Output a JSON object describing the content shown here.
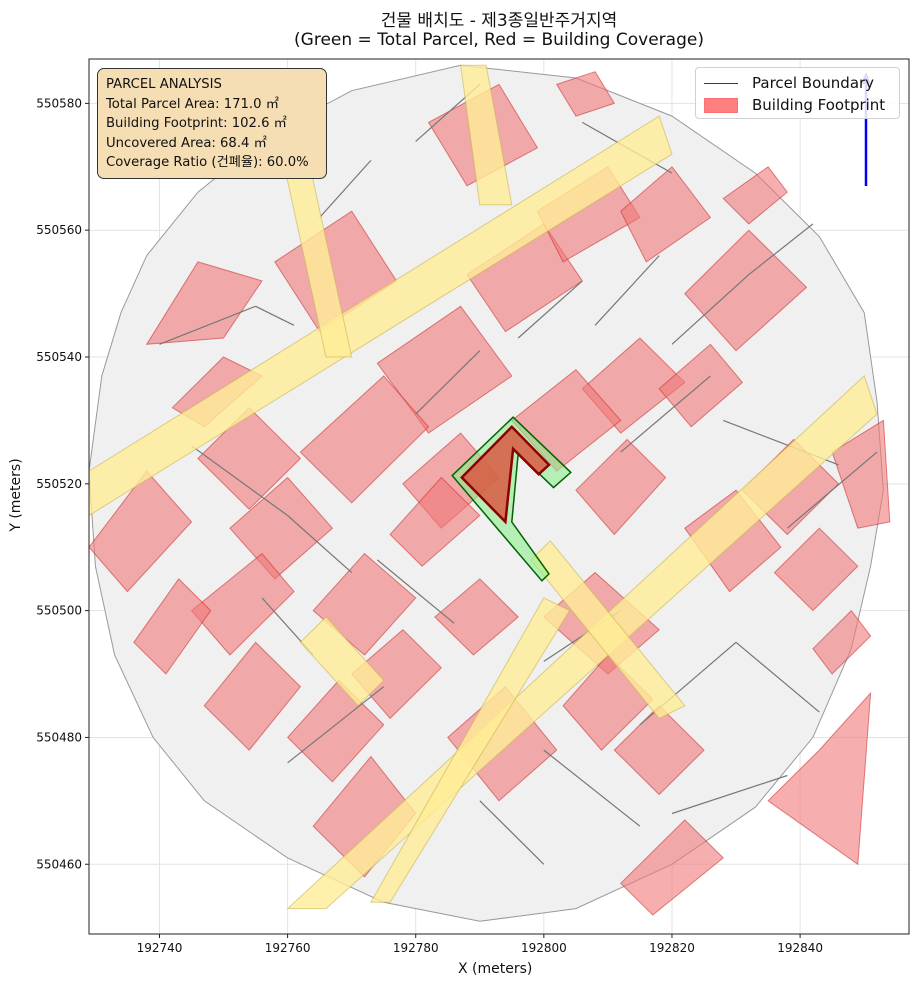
{
  "chart_data": {
    "type": "map",
    "title": "건물 배치도 - 제3종일반주거지역",
    "subtitle": "(Green = Total Parcel, Red = Building Coverage)",
    "xlabel": "X (meters)",
    "ylabel": "Y (meters)",
    "xlim": [
      192729,
      192857
    ],
    "ylim": [
      550449,
      550587
    ],
    "x_ticks": [
      192740,
      192760,
      192780,
      192800,
      192820,
      192840
    ],
    "y_ticks": [
      550460,
      550480,
      550500,
      550520,
      550540,
      550560,
      550580
    ],
    "grid": true,
    "legend_position": "top-right",
    "legend": [
      {
        "label": "Parcel Boundary",
        "type": "line",
        "color": "#006400"
      },
      {
        "label": "Building Footprint",
        "type": "patch",
        "color": "#ff0000"
      }
    ],
    "info_box": {
      "lines": [
        "PARCEL ANALYSIS",
        "Total Parcel Area: 171.0 ㎡",
        "Building Footprint: 102.6 ㎡",
        "Uncovered Area: 68.4 ㎡",
        "Coverage Ratio (건폐율): 60.0%"
      ]
    },
    "analysis": {
      "total_parcel_area_m2": 171.0,
      "building_footprint_m2": 102.6,
      "uncovered_area_m2": 68.4,
      "coverage_ratio_percent": 60.0
    },
    "target_parcel": [
      [
        192785.7,
        550521.3
      ],
      [
        192795.2,
        550530.5
      ],
      [
        192804.2,
        550521.8
      ],
      [
        192801.5,
        550519.4
      ],
      [
        192796.0,
        550524.8
      ],
      [
        192795.0,
        550514.0
      ],
      [
        192800.8,
        550505.8
      ],
      [
        192799.7,
        550504.7
      ]
    ],
    "target_building": [
      [
        192787.2,
        550521.0
      ],
      [
        192795.0,
        550529.0
      ],
      [
        192800.8,
        550523.0
      ],
      [
        192799.2,
        550521.5
      ],
      [
        192795.2,
        550525.5
      ],
      [
        192794.0,
        550514.0
      ]
    ],
    "context_boundary": [
      [
        192738,
        550556
      ],
      [
        192746,
        550566
      ],
      [
        192757,
        550575
      ],
      [
        192770,
        550582
      ],
      [
        192787,
        550586
      ],
      [
        192805,
        550584
      ],
      [
        192820,
        550578
      ],
      [
        192833,
        550569
      ],
      [
        192843,
        550559
      ],
      [
        192850,
        550547
      ],
      [
        192852,
        550533
      ],
      [
        192853,
        550519
      ],
      [
        192851,
        550507
      ],
      [
        192848,
        550494
      ],
      [
        192842,
        550480
      ],
      [
        192833,
        550469
      ],
      [
        192820,
        550460
      ],
      [
        192805,
        550453
      ],
      [
        192790,
        550451
      ],
      [
        192775,
        550454
      ],
      [
        192760,
        550461
      ],
      [
        192747,
        550470
      ],
      [
        192739,
        550480
      ],
      [
        192733,
        550493
      ],
      [
        192730,
        550507
      ],
      [
        192729,
        550522
      ],
      [
        192731,
        550537
      ],
      [
        192734,
        550547
      ]
    ],
    "roads": [
      [
        [
          192729,
          550515
        ],
        [
          192820,
          550572
        ],
        [
          192818,
          550578
        ],
        [
          192729,
          550522
        ]
      ],
      [
        [
          192758,
          550577
        ],
        [
          192762,
          550577
        ],
        [
          192770,
          550540
        ],
        [
          192766,
          550540
        ]
      ],
      [
        [
          192787,
          550586
        ],
        [
          192791,
          550586
        ],
        [
          192795,
          550564
        ],
        [
          192790,
          550564
        ]
      ],
      [
        [
          192760,
          550453
        ],
        [
          192850,
          550537
        ],
        [
          192852,
          550531
        ],
        [
          192766,
          550453
        ]
      ],
      [
        [
          192773,
          550454
        ],
        [
          192800,
          550502
        ],
        [
          192804,
          550500
        ],
        [
          192776,
          550454
        ]
      ],
      [
        [
          192798,
          550508
        ],
        [
          192818,
          550483
        ],
        [
          192822,
          550485
        ],
        [
          192801,
          550511
        ]
      ],
      [
        [
          192762,
          550495
        ],
        [
          192766,
          550499
        ],
        [
          192775,
          550489
        ],
        [
          192771,
          550485
        ]
      ]
    ],
    "context_buildings": [
      [
        [
          192758,
          550555
        ],
        [
          192770,
          550563
        ],
        [
          192777,
          550552
        ],
        [
          192765,
          550544
        ]
      ],
      [
        [
          192782,
          550577
        ],
        [
          192793,
          550583
        ],
        [
          192799,
          550573
        ],
        [
          192788,
          550567
        ]
      ],
      [
        [
          192802,
          550583
        ],
        [
          192808,
          550585
        ],
        [
          192811,
          550580
        ],
        [
          192805,
          550578
        ]
      ],
      [
        [
          192738,
          550542
        ],
        [
          192746,
          550555
        ],
        [
          192756,
          550552
        ],
        [
          192750,
          550543
        ]
      ],
      [
        [
          192742,
          550532
        ],
        [
          192750,
          550540
        ],
        [
          192756,
          550537
        ],
        [
          192747,
          550529
        ]
      ],
      [
        [
          192774,
          550539
        ],
        [
          192787,
          550548
        ],
        [
          192795,
          550537
        ],
        [
          192782,
          550528
        ]
      ],
      [
        [
          192788,
          550553
        ],
        [
          192800,
          550561
        ],
        [
          192806,
          550552
        ],
        [
          192794,
          550544
        ]
      ],
      [
        [
          192799,
          550563
        ],
        [
          192810,
          550570
        ],
        [
          192815,
          550562
        ],
        [
          192803,
          550555
        ]
      ],
      [
        [
          192812,
          550563
        ],
        [
          192820,
          550570
        ],
        [
          192826,
          550562
        ],
        [
          192816,
          550555
        ]
      ],
      [
        [
          192828,
          550565
        ],
        [
          192835,
          550570
        ],
        [
          192838,
          550566
        ],
        [
          192832,
          550561
        ]
      ],
      [
        [
          192822,
          550550
        ],
        [
          192832,
          550560
        ],
        [
          192841,
          550551
        ],
        [
          192830,
          550541
        ]
      ],
      [
        [
          192806,
          550535
        ],
        [
          192815,
          550543
        ],
        [
          192822,
          550536
        ],
        [
          192812,
          550528
        ]
      ],
      [
        [
          192818,
          550535
        ],
        [
          192826,
          550542
        ],
        [
          192831,
          550536
        ],
        [
          192823,
          550529
        ]
      ],
      [
        [
          192795,
          550530
        ],
        [
          192805,
          550538
        ],
        [
          192812,
          550530
        ],
        [
          192802,
          550522
        ]
      ],
      [
        [
          192805,
          550519
        ],
        [
          192813,
          550527
        ],
        [
          192819,
          550521
        ],
        [
          192811,
          550512
        ]
      ],
      [
        [
          192831,
          550519
        ],
        [
          192839,
          550527
        ],
        [
          192846,
          550520
        ],
        [
          192838,
          550512
        ]
      ],
      [
        [
          192845,
          550525
        ],
        [
          192853,
          550530
        ],
        [
          192854,
          550514
        ],
        [
          192849,
          550513
        ]
      ],
      [
        [
          192746,
          550524
        ],
        [
          192754,
          550532
        ],
        [
          192762,
          550524
        ],
        [
          192754,
          550516
        ]
      ],
      [
        [
          192762,
          550525
        ],
        [
          192775,
          550537
        ],
        [
          192782,
          550529
        ],
        [
          192770,
          550517
        ]
      ],
      [
        [
          192778,
          550520
        ],
        [
          192787,
          550528
        ],
        [
          192793,
          550521
        ],
        [
          192784,
          550513
        ]
      ],
      [
        [
          192729,
          550510
        ],
        [
          192738,
          550522
        ],
        [
          192745,
          550514
        ],
        [
          192735,
          550503
        ]
      ],
      [
        [
          192751,
          550513
        ],
        [
          192760,
          550521
        ],
        [
          192767,
          550513
        ],
        [
          192758,
          550505
        ]
      ],
      [
        [
          192776,
          550512
        ],
        [
          192784,
          550521
        ],
        [
          192790,
          550515
        ],
        [
          192781,
          550507
        ]
      ],
      [
        [
          192745,
          550500
        ],
        [
          192756,
          550509
        ],
        [
          192761,
          550503
        ],
        [
          192751,
          550493
        ]
      ],
      [
        [
          192764,
          550500
        ],
        [
          192772,
          550509
        ],
        [
          192780,
          550502
        ],
        [
          192772,
          550493
        ]
      ],
      [
        [
          192783,
          550499
        ],
        [
          192790,
          550505
        ],
        [
          192796,
          550499
        ],
        [
          192789,
          550493
        ]
      ],
      [
        [
          192800,
          550499
        ],
        [
          192808,
          550506
        ],
        [
          192818,
          550497
        ],
        [
          192810,
          550490
        ]
      ],
      [
        [
          192822,
          550513
        ],
        [
          192830,
          550519
        ],
        [
          192837,
          550510
        ],
        [
          192829,
          550503
        ]
      ],
      [
        [
          192836,
          550506
        ],
        [
          192843,
          550513
        ],
        [
          192849,
          550507
        ],
        [
          192842,
          550500
        ]
      ],
      [
        [
          192747,
          550485
        ],
        [
          192755,
          550495
        ],
        [
          192762,
          550488
        ],
        [
          192754,
          550478
        ]
      ],
      [
        [
          192760,
          550480
        ],
        [
          192768,
          550489
        ],
        [
          192775,
          550482
        ],
        [
          192767,
          550473
        ]
      ],
      [
        [
          192770,
          550490
        ],
        [
          192778,
          550497
        ],
        [
          192784,
          550491
        ],
        [
          192776,
          550483
        ]
      ],
      [
        [
          192785,
          550480
        ],
        [
          192794,
          550488
        ],
        [
          192802,
          550478
        ],
        [
          192793,
          550470
        ]
      ],
      [
        [
          192803,
          550485
        ],
        [
          192810,
          550493
        ],
        [
          192817,
          550486
        ],
        [
          192809,
          550478
        ]
      ],
      [
        [
          192811,
          550478
        ],
        [
          192818,
          550485
        ],
        [
          192825,
          550478
        ],
        [
          192818,
          550471
        ]
      ],
      [
        [
          192764,
          550466
        ],
        [
          192773,
          550477
        ],
        [
          192780,
          550468
        ],
        [
          192772,
          550458
        ]
      ],
      [
        [
          192835,
          550470
        ],
        [
          192843,
          550478
        ],
        [
          192851,
          550487
        ],
        [
          192849,
          550460
        ]
      ],
      [
        [
          192812,
          550457
        ],
        [
          192822,
          550467
        ],
        [
          192828,
          550461
        ],
        [
          192817,
          550452
        ]
      ],
      [
        [
          192842,
          550494
        ],
        [
          192848,
          550500
        ],
        [
          192851,
          550496
        ],
        [
          192845,
          550490
        ]
      ],
      [
        [
          192736,
          550495
        ],
        [
          192743,
          550505
        ],
        [
          192748,
          550500
        ],
        [
          192741,
          550490
        ]
      ]
    ],
    "lot_lines": [
      [
        [
          192740,
          550542
        ],
        [
          192755,
          550548
        ]
      ],
      [
        [
          192755,
          550548
        ],
        [
          192761,
          550545
        ]
      ],
      [
        [
          192765,
          550562
        ],
        [
          192773,
          550571
        ]
      ],
      [
        [
          192780,
          550574
        ],
        [
          192790,
          550583
        ]
      ],
      [
        [
          192806,
          550577
        ],
        [
          192820,
          550569
        ]
      ],
      [
        [
          192808,
          550545
        ],
        [
          192818,
          550556
        ]
      ],
      [
        [
          192820,
          550542
        ],
        [
          192832,
          550553
        ]
      ],
      [
        [
          192832,
          550553
        ],
        [
          192842,
          550561
        ]
      ],
      [
        [
          192780,
          550531
        ],
        [
          192790,
          550541
        ]
      ],
      [
        [
          192796,
          550543
        ],
        [
          192806,
          550552
        ]
      ],
      [
        [
          192812,
          550525
        ],
        [
          192826,
          550537
        ]
      ],
      [
        [
          192828,
          550530
        ],
        [
          192846,
          550523
        ]
      ],
      [
        [
          192838,
          550513
        ],
        [
          192852,
          550525
        ]
      ],
      [
        [
          192745,
          550526
        ],
        [
          192760,
          550515
        ]
      ],
      [
        [
          192760,
          550515
        ],
        [
          192770,
          550506
        ]
      ],
      [
        [
          192774,
          550508
        ],
        [
          192786,
          550498
        ]
      ],
      [
        [
          192756,
          550502
        ],
        [
          192764,
          550493
        ]
      ],
      [
        [
          192800,
          550492
        ],
        [
          192812,
          550500
        ]
      ],
      [
        [
          192815,
          550482
        ],
        [
          192830,
          550495
        ]
      ],
      [
        [
          192830,
          550495
        ],
        [
          192843,
          550484
        ]
      ],
      [
        [
          192790,
          550470
        ],
        [
          192800,
          550460
        ]
      ],
      [
        [
          192820,
          550468
        ],
        [
          192838,
          550474
        ]
      ],
      [
        [
          192800,
          550478
        ],
        [
          192815,
          550466
        ]
      ],
      [
        [
          192760,
          550476
        ],
        [
          192775,
          550488
        ]
      ]
    ]
  }
}
